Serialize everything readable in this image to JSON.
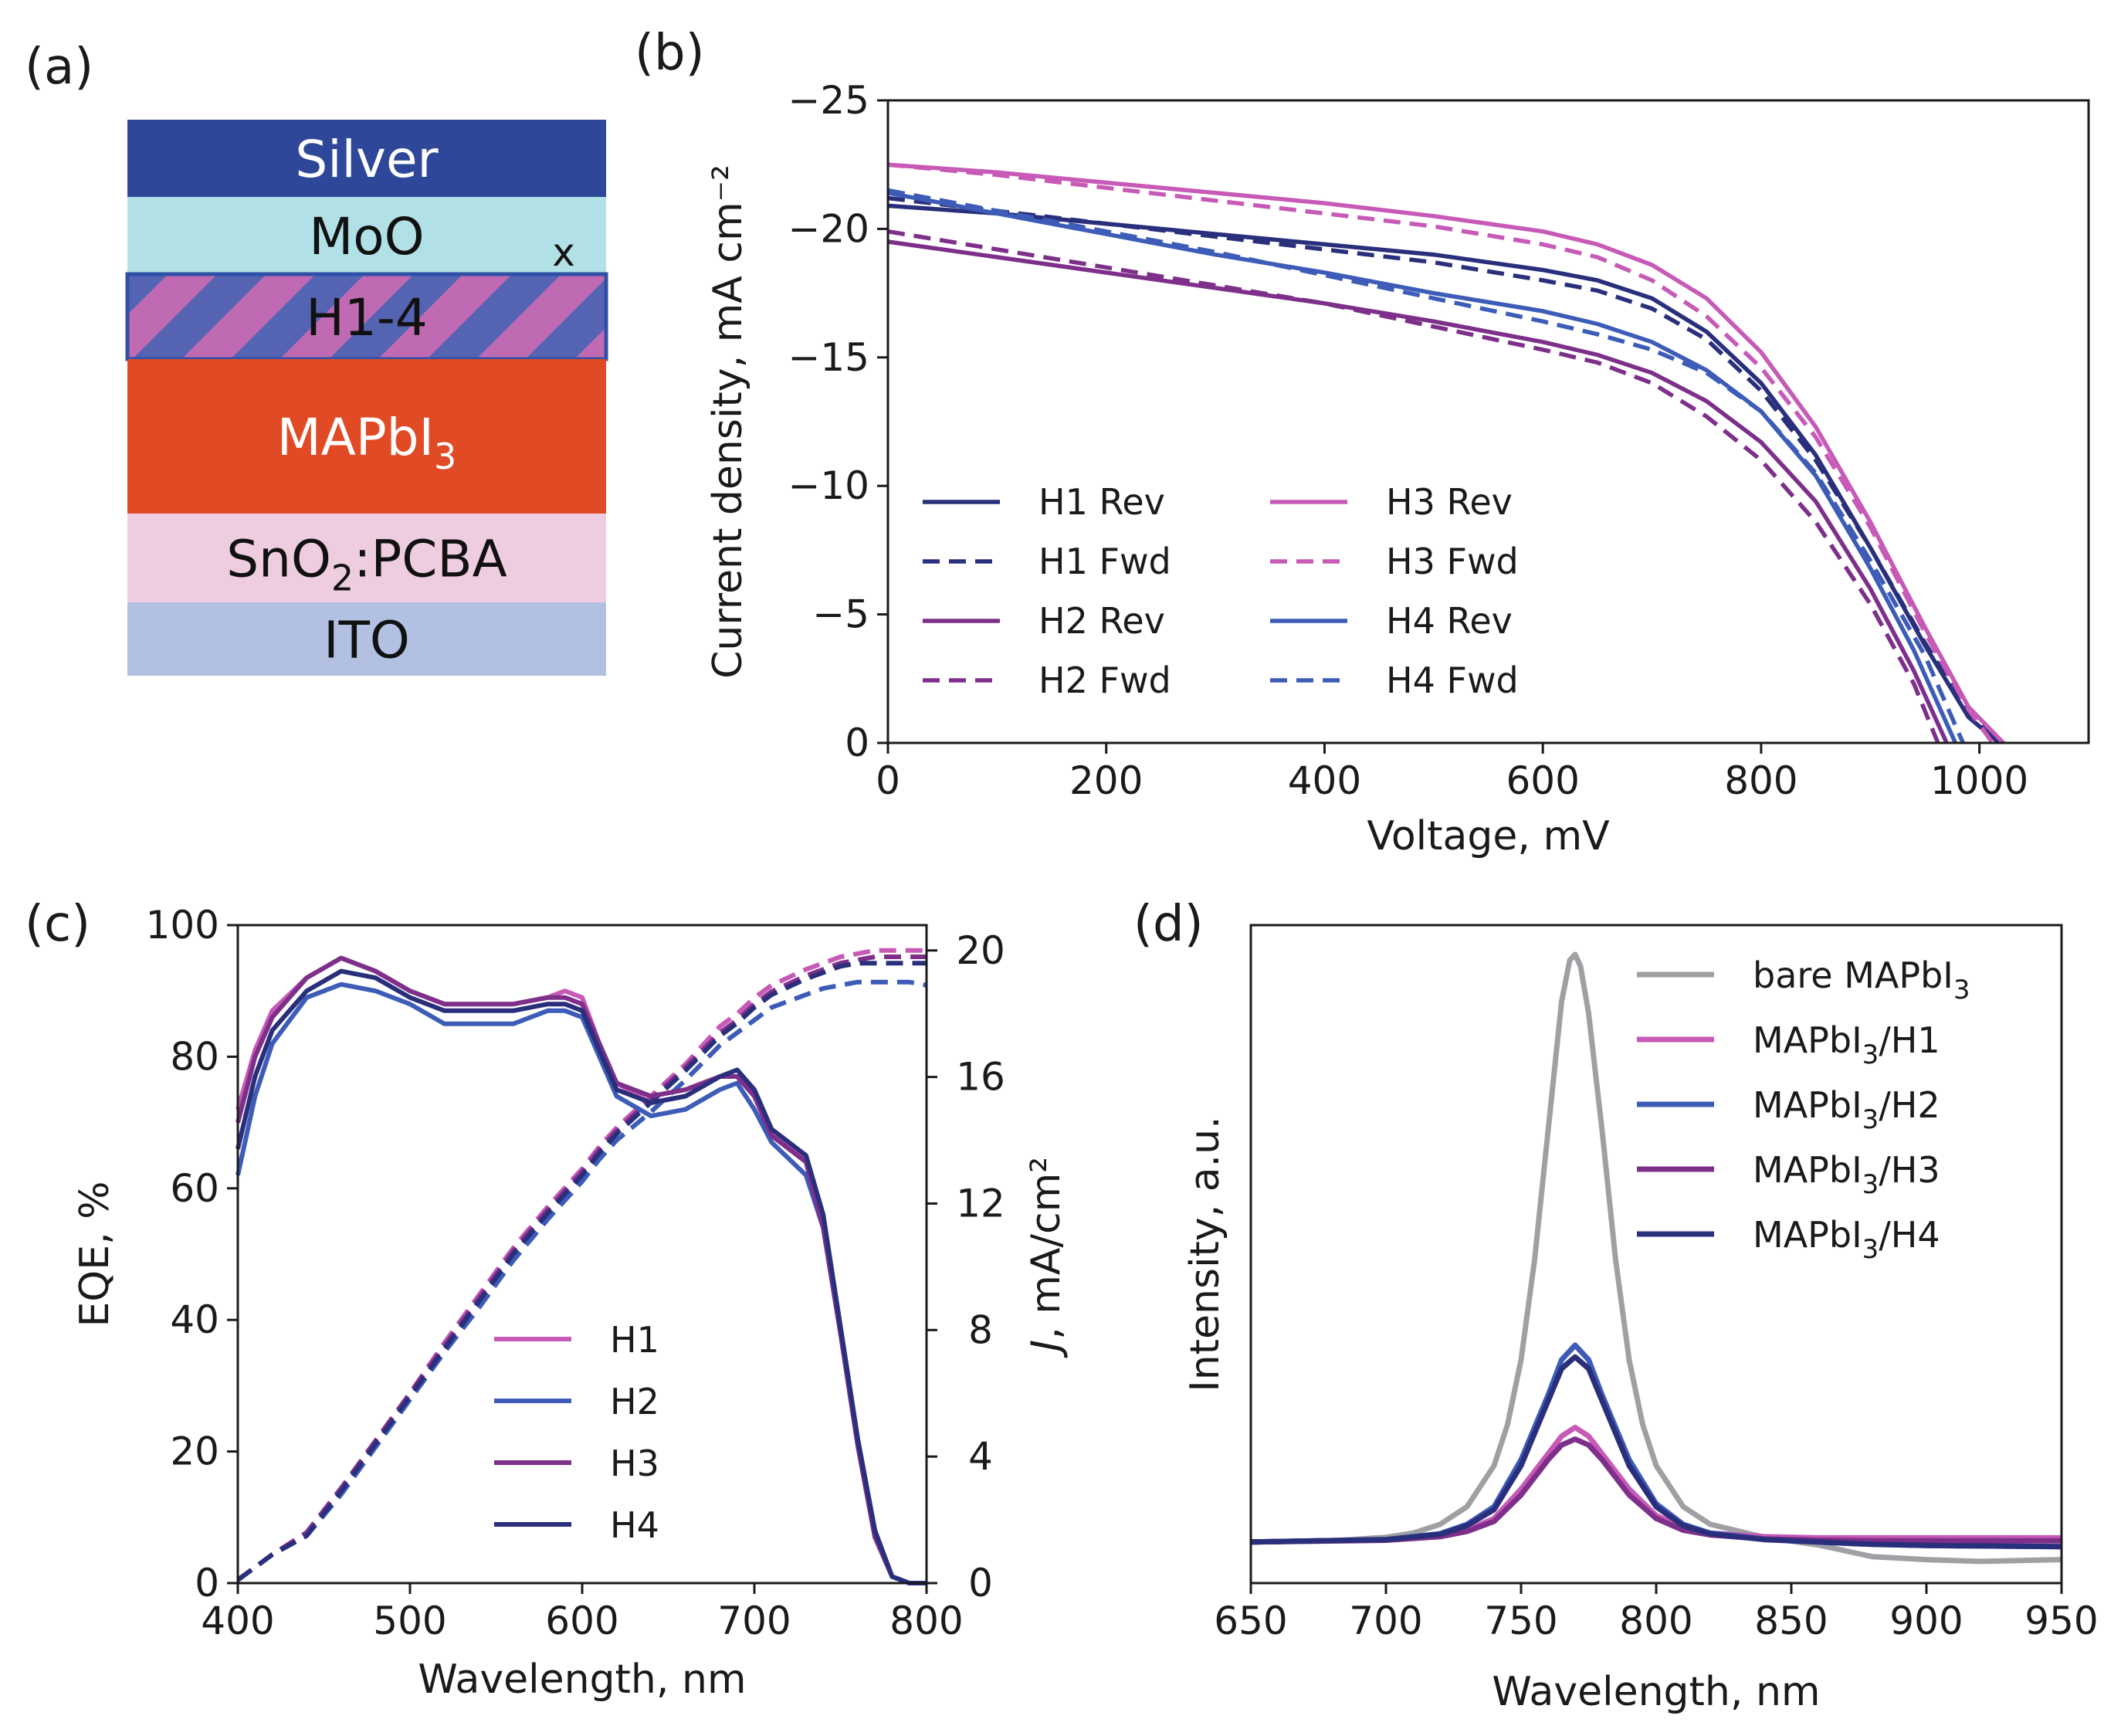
{
  "panels": {
    "a": "(a)",
    "b": "(b)",
    "c": "(c)",
    "d": "(d)"
  },
  "stack": {
    "layers": [
      {
        "label": "Silver",
        "color": "#2e4799",
        "text_color": "#ffffff"
      },
      {
        "label": "MoO",
        "sub": "x",
        "color": "#b1e1e6",
        "text_color": "#111111"
      },
      {
        "label": "H1-4",
        "color": "#c06ab4",
        "alt_color": "#5464b2",
        "border": "#3050a8",
        "text_color": "#111111",
        "pattern": "diagonal-stripes"
      },
      {
        "label": "MAPbI",
        "sub": "3",
        "color": "#e04a24",
        "text_color": "#ffffff"
      },
      {
        "label": "SnO",
        "sub": "2",
        "suffix": ":PCBA",
        "color": "#efcde0",
        "text_color": "#111111"
      },
      {
        "label": "ITO",
        "color": "#b2c1e2",
        "text_color": "#111111"
      }
    ]
  },
  "chart_data": [
    {
      "id": "b",
      "type": "line",
      "xlabel": "Voltage, mV",
      "ylabel": "Current density, mA cm⁻²",
      "xlim": [
        0,
        1100
      ],
      "ylim": [
        0,
        -25
      ],
      "y_inverted": true,
      "xticks": [
        0,
        200,
        400,
        600,
        800,
        1000
      ],
      "yticks": [
        0,
        -5,
        -10,
        -15,
        -20,
        -25
      ],
      "ytick_labels": [
        "0",
        "−5",
        "−10",
        "−15",
        "−20",
        "−25"
      ],
      "legend_position": "lower-left",
      "legend_columns": 2,
      "series": [
        {
          "name": "H1 Rev",
          "color": "#2a2f7c",
          "dash": "solid",
          "x": [
            0,
            100,
            200,
            300,
            400,
            500,
            600,
            650,
            700,
            750,
            800,
            850,
            900,
            950,
            990,
            1018
          ],
          "y": [
            -20.9,
            -20.6,
            -20.2,
            -19.8,
            -19.4,
            -19.0,
            -18.4,
            -18.0,
            -17.3,
            -16.0,
            -14.0,
            -11.2,
            -7.6,
            -3.8,
            -1.0,
            0
          ]
        },
        {
          "name": "H1 Fwd",
          "color": "#2a2f7c",
          "dash": "dashed",
          "x": [
            0,
            100,
            200,
            300,
            400,
            500,
            600,
            650,
            700,
            750,
            800,
            850,
            900,
            950,
            990,
            1022
          ],
          "y": [
            -21.2,
            -20.7,
            -20.2,
            -19.7,
            -19.2,
            -18.7,
            -18.0,
            -17.6,
            -16.9,
            -15.7,
            -13.7,
            -11.0,
            -7.6,
            -3.9,
            -1.2,
            0
          ]
        },
        {
          "name": "H2 Rev",
          "color": "#7d2f8a",
          "dash": "solid",
          "x": [
            0,
            100,
            200,
            300,
            400,
            500,
            600,
            650,
            700,
            750,
            800,
            850,
            900,
            940,
            970
          ],
          "y": [
            -19.5,
            -18.9,
            -18.3,
            -17.7,
            -17.1,
            -16.4,
            -15.6,
            -15.1,
            -14.4,
            -13.3,
            -11.7,
            -9.4,
            -6.0,
            -2.8,
            0
          ]
        },
        {
          "name": "H2 Fwd",
          "color": "#7d2f8a",
          "dash": "dashed",
          "x": [
            0,
            100,
            200,
            300,
            400,
            500,
            600,
            650,
            700,
            750,
            800,
            850,
            900,
            940,
            962
          ],
          "y": [
            -19.9,
            -19.2,
            -18.5,
            -17.8,
            -17.1,
            -16.2,
            -15.3,
            -14.8,
            -14.0,
            -12.7,
            -11.0,
            -8.6,
            -5.4,
            -2.3,
            0
          ]
        },
        {
          "name": "H3 Rev",
          "color": "#c65ab6",
          "dash": "solid",
          "x": [
            0,
            100,
            200,
            300,
            400,
            500,
            600,
            650,
            700,
            750,
            800,
            850,
            900,
            950,
            990,
            1022
          ],
          "y": [
            -22.5,
            -22.2,
            -21.8,
            -21.4,
            -21.0,
            -20.5,
            -19.9,
            -19.4,
            -18.6,
            -17.3,
            -15.2,
            -12.3,
            -8.6,
            -4.5,
            -1.4,
            0
          ]
        },
        {
          "name": "H3 Fwd",
          "color": "#c65ab6",
          "dash": "dashed",
          "x": [
            0,
            100,
            200,
            300,
            400,
            500,
            600,
            650,
            700,
            750,
            800,
            850,
            900,
            950,
            990,
            1012
          ],
          "y": [
            -22.5,
            -22.1,
            -21.6,
            -21.1,
            -20.6,
            -20.1,
            -19.4,
            -18.9,
            -18.0,
            -16.6,
            -14.6,
            -11.9,
            -8.4,
            -4.3,
            -1.3,
            0
          ]
        },
        {
          "name": "H4 Rev",
          "color": "#3c5cb8",
          "dash": "solid",
          "x": [
            0,
            100,
            200,
            300,
            400,
            500,
            600,
            650,
            700,
            750,
            800,
            850,
            900,
            940,
            978
          ],
          "y": [
            -21.4,
            -20.6,
            -19.8,
            -19.0,
            -18.3,
            -17.5,
            -16.8,
            -16.3,
            -15.6,
            -14.5,
            -12.9,
            -10.4,
            -6.8,
            -3.6,
            0
          ]
        },
        {
          "name": "H4 Fwd",
          "color": "#3c5cb8",
          "dash": "dashed",
          "x": [
            0,
            100,
            200,
            300,
            400,
            500,
            600,
            650,
            700,
            750,
            800,
            850,
            900,
            950,
            985
          ],
          "y": [
            -21.5,
            -20.7,
            -19.9,
            -19.1,
            -18.2,
            -17.3,
            -16.4,
            -15.9,
            -15.3,
            -14.4,
            -12.9,
            -10.5,
            -7.1,
            -3.4,
            0
          ]
        }
      ]
    },
    {
      "id": "c",
      "type": "line",
      "xlabel": "Wavelength, nm",
      "ylabel": "EQE, %",
      "y2label_italic": "J",
      "y2label": ", mA/cm²",
      "xlim": [
        400,
        800
      ],
      "ylim": [
        0,
        100
      ],
      "y2lim": [
        0,
        20.8
      ],
      "xticks": [
        400,
        500,
        600,
        700,
        800
      ],
      "yticks": [
        0,
        20,
        40,
        60,
        80,
        100
      ],
      "y2ticks": [
        0,
        4,
        8,
        12,
        16,
        20
      ],
      "legend_position": "lower-center",
      "series": [
        {
          "name": "H1",
          "color": "#c65ab6",
          "x": [
            400,
            410,
            420,
            440,
            460,
            480,
            500,
            520,
            540,
            560,
            580,
            590,
            600,
            610,
            620,
            640,
            660,
            680,
            690,
            700,
            710,
            730,
            740,
            750,
            760,
            770,
            780,
            790,
            800
          ],
          "y": [
            72,
            81,
            87,
            92,
            95,
            93,
            90,
            88,
            88,
            88,
            89,
            90,
            89,
            82,
            76,
            73,
            74,
            77,
            77,
            74,
            69,
            64,
            55,
            39,
            22,
            8,
            1,
            0,
            0
          ],
          "cumulative": [
            0.1,
            0.5,
            0.9,
            1.6,
            3.0,
            4.5,
            6.0,
            7.6,
            9.1,
            10.6,
            11.9,
            12.5,
            13.1,
            13.8,
            14.4,
            15.4,
            16.4,
            17.6,
            18.0,
            18.5,
            18.9,
            19.4,
            19.6,
            19.8,
            19.9,
            20.0,
            20.0,
            20.0,
            20.0
          ]
        },
        {
          "name": "H2",
          "color": "#3c5cb8",
          "x": [
            400,
            410,
            420,
            440,
            460,
            480,
            500,
            520,
            540,
            560,
            580,
            590,
            600,
            610,
            620,
            640,
            660,
            680,
            690,
            700,
            710,
            730,
            740,
            750,
            760,
            770,
            780,
            790,
            800
          ],
          "y": [
            62,
            74,
            82,
            89,
            91,
            90,
            88,
            85,
            85,
            85,
            87,
            87,
            86,
            80,
            74,
            71,
            72,
            75,
            76,
            72,
            67,
            62,
            54,
            38,
            21,
            7,
            1,
            0,
            0
          ],
          "cumulative": [
            0.1,
            0.5,
            0.9,
            1.5,
            2.8,
            4.3,
            5.8,
            7.3,
            8.7,
            10.2,
            11.5,
            12.1,
            12.7,
            13.4,
            14.0,
            14.9,
            15.9,
            17.0,
            17.4,
            17.8,
            18.2,
            18.6,
            18.8,
            18.9,
            19.0,
            19.0,
            19.0,
            19.0,
            18.9
          ]
        },
        {
          "name": "H3",
          "color": "#7d2f8a",
          "x": [
            400,
            410,
            420,
            440,
            460,
            480,
            500,
            520,
            540,
            560,
            580,
            590,
            600,
            610,
            620,
            640,
            660,
            680,
            690,
            700,
            710,
            730,
            740,
            750,
            760,
            770,
            780,
            790,
            800
          ],
          "y": [
            70,
            80,
            86,
            92,
            95,
            93,
            90,
            88,
            88,
            88,
            89,
            89,
            88,
            82,
            76,
            74,
            75,
            77,
            77,
            74,
            68,
            64,
            54,
            38,
            21,
            7,
            1,
            0,
            0
          ],
          "cumulative": [
            0.1,
            0.5,
            0.9,
            1.6,
            3.0,
            4.5,
            6.0,
            7.5,
            9.0,
            10.5,
            11.8,
            12.4,
            13.0,
            13.7,
            14.3,
            15.3,
            16.3,
            17.4,
            17.8,
            18.3,
            18.7,
            19.2,
            19.4,
            19.6,
            19.7,
            19.8,
            19.8,
            19.8,
            19.8
          ]
        },
        {
          "name": "H4",
          "color": "#2a2f7c",
          "x": [
            400,
            410,
            420,
            440,
            460,
            480,
            500,
            520,
            540,
            560,
            580,
            590,
            600,
            610,
            620,
            640,
            660,
            680,
            690,
            700,
            710,
            730,
            740,
            750,
            760,
            770,
            780,
            790,
            800
          ],
          "y": [
            66,
            77,
            84,
            90,
            93,
            92,
            89,
            87,
            87,
            87,
            88,
            88,
            87,
            81,
            75,
            73,
            74,
            77,
            78,
            75,
            69,
            65,
            56,
            39,
            22,
            8,
            1,
            0,
            0
          ],
          "cumulative": [
            0.1,
            0.5,
            0.9,
            1.5,
            2.9,
            4.4,
            5.9,
            7.4,
            8.9,
            10.4,
            11.7,
            12.3,
            12.9,
            13.6,
            14.2,
            15.2,
            16.2,
            17.3,
            17.7,
            18.2,
            18.6,
            19.1,
            19.3,
            19.5,
            19.6,
            19.6,
            19.6,
            19.6,
            19.6
          ]
        }
      ]
    },
    {
      "id": "d",
      "type": "line",
      "xlabel": "Wavelength, nm",
      "ylabel": "Intensity, a.u.",
      "xlim": [
        650,
        950
      ],
      "ylim": [
        -0.07,
        1.05
      ],
      "xticks": [
        650,
        700,
        750,
        800,
        850,
        900,
        950
      ],
      "legend_position": "upper-right",
      "series": [
        {
          "name_main": "bare MAPbI",
          "name_sub": "3",
          "name_suffix": "",
          "color": "#a0a0a4",
          "x": [
            650,
            680,
            700,
            710,
            720,
            730,
            740,
            745,
            750,
            755,
            760,
            765,
            768,
            770,
            772,
            775,
            780,
            785,
            790,
            795,
            800,
            810,
            820,
            840,
            860,
            880,
            900,
            920,
            950
          ],
          "y": [
            0,
            0.002,
            0.008,
            0.015,
            0.03,
            0.06,
            0.13,
            0.2,
            0.31,
            0.48,
            0.7,
            0.92,
            0.99,
            1.0,
            0.98,
            0.9,
            0.7,
            0.48,
            0.31,
            0.2,
            0.13,
            0.06,
            0.03,
            0.008,
            -0.005,
            -0.025,
            -0.03,
            -0.033,
            -0.03
          ]
        },
        {
          "name_main": "MAPbI",
          "name_sub": "3",
          "name_suffix": "/H1",
          "color": "#c65ab6",
          "x": [
            650,
            700,
            720,
            730,
            740,
            750,
            760,
            765,
            770,
            775,
            780,
            790,
            800,
            810,
            820,
            840,
            860,
            880,
            900,
            950
          ],
          "y": [
            0,
            0.004,
            0.01,
            0.02,
            0.04,
            0.09,
            0.15,
            0.18,
            0.195,
            0.18,
            0.15,
            0.09,
            0.045,
            0.025,
            0.015,
            0.009,
            0.007,
            0.007,
            0.007,
            0.007
          ]
        },
        {
          "name_main": "MAPbI",
          "name_sub": "3",
          "name_suffix": "/H2",
          "color": "#3c5cb8",
          "x": [
            650,
            700,
            720,
            730,
            740,
            750,
            760,
            765,
            770,
            775,
            780,
            790,
            800,
            810,
            820,
            840,
            860,
            880,
            900,
            950
          ],
          "y": [
            0,
            0.004,
            0.014,
            0.03,
            0.06,
            0.14,
            0.25,
            0.31,
            0.335,
            0.31,
            0.25,
            0.14,
            0.065,
            0.03,
            0.015,
            0.005,
            0,
            -0.004,
            -0.006,
            -0.008
          ]
        },
        {
          "name_main": "MAPbI",
          "name_sub": "3",
          "name_suffix": "/H3",
          "color": "#7d2f8a",
          "x": [
            650,
            700,
            720,
            730,
            740,
            750,
            760,
            765,
            770,
            775,
            780,
            790,
            800,
            810,
            820,
            840,
            860,
            880,
            900,
            950
          ],
          "y": [
            0,
            0.003,
            0.009,
            0.018,
            0.035,
            0.08,
            0.14,
            0.165,
            0.175,
            0.165,
            0.14,
            0.08,
            0.04,
            0.02,
            0.012,
            0.005,
            0.003,
            0.002,
            0.002,
            0.002
          ]
        },
        {
          "name_main": "MAPbI",
          "name_sub": "3",
          "name_suffix": "/H4",
          "color": "#2a2f7c",
          "x": [
            650,
            700,
            720,
            730,
            740,
            750,
            760,
            765,
            770,
            775,
            780,
            790,
            800,
            810,
            820,
            840,
            860,
            880,
            900,
            950
          ],
          "y": [
            0,
            0.004,
            0.013,
            0.028,
            0.055,
            0.13,
            0.24,
            0.295,
            0.315,
            0.295,
            0.24,
            0.13,
            0.06,
            0.028,
            0.014,
            0.004,
            0,
            -0.004,
            -0.006,
            -0.008
          ]
        }
      ]
    }
  ]
}
